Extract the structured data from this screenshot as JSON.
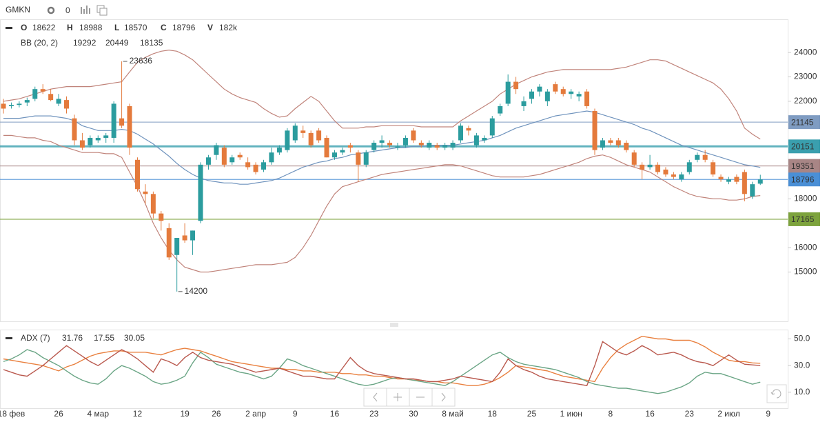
{
  "header": {
    "symbol": "GMKN",
    "count": "0"
  },
  "chart_data": [
    {
      "type": "candlestick",
      "ohlc_labels": [
        "O",
        "H",
        "L",
        "C",
        "V"
      ],
      "volume": 182000,
      "volume_label": "182k",
      "categories": [
        null,
        "18 фев",
        null,
        null,
        null,
        null,
        null,
        "26",
        null,
        null,
        null,
        null,
        "4 мар",
        null,
        null,
        null,
        null,
        "12",
        null,
        null,
        null,
        null,
        null,
        "19",
        null,
        null,
        null,
        "26",
        null,
        null,
        null,
        null,
        "2 апр",
        null,
        null,
        null,
        null,
        "9",
        null,
        null,
        null,
        null,
        "16",
        null,
        null,
        null,
        null,
        "23",
        null,
        null,
        null,
        null,
        "30",
        null,
        null,
        null,
        null,
        "8 май",
        null,
        null,
        null,
        null,
        "18",
        null,
        null,
        null,
        null,
        "25",
        null,
        null,
        null,
        null,
        "1 июн",
        null,
        null,
        null,
        null,
        "8",
        null,
        null,
        null,
        null,
        "16",
        null,
        null,
        null,
        null,
        "23",
        null,
        null,
        null,
        null,
        "2 июл",
        null,
        null,
        null,
        null,
        "9",
        null,
        null
      ],
      "open": [
        21900,
        21800,
        21850,
        21950,
        22100,
        22500,
        22300,
        21900,
        22050,
        21300,
        20400,
        20200,
        20400,
        20500,
        20500,
        21300,
        21800,
        19600,
        18300,
        18200,
        17400,
        16800,
        15700,
        16500,
        16300,
        17100,
        19400,
        19800,
        20100,
        19500,
        19800,
        19500,
        19400,
        19200,
        19500,
        19900,
        20000,
        20400,
        20800,
        20700,
        20800,
        20500,
        19700,
        19900,
        20200,
        19900,
        19400,
        20000,
        20300,
        20300,
        20100,
        20200,
        20800,
        20300,
        20100,
        20200,
        20100,
        20100,
        20400,
        20900,
        20200,
        20400,
        20600,
        21500,
        21900,
        22800,
        21800,
        22100,
        22400,
        22000,
        22700,
        22500,
        22300,
        22200,
        22400,
        21600,
        20100,
        20400,
        20400,
        20300,
        19900,
        19400,
        19300,
        19400,
        19200,
        19000,
        18800,
        19100,
        19600,
        19800,
        19500,
        18900,
        18700,
        18900,
        19100,
        18100,
        18622,
        null,
        null,
        null
      ],
      "high": [
        22100,
        21950,
        22000,
        22150,
        22600,
        22700,
        22500,
        22300,
        22200,
        21450,
        20700,
        20600,
        20600,
        20700,
        22000,
        23636,
        21900,
        19700,
        18600,
        18300,
        17500,
        17000,
        16300,
        17000,
        16700,
        19500,
        19800,
        20300,
        20200,
        19800,
        19900,
        19700,
        19500,
        19600,
        20100,
        20200,
        20900,
        21100,
        21000,
        20800,
        20900,
        20600,
        20000,
        20100,
        20300,
        20000,
        20000,
        20400,
        20600,
        20400,
        20300,
        20600,
        20900,
        20400,
        20400,
        20300,
        20300,
        20400,
        21100,
        21000,
        20700,
        20600,
        21400,
        21900,
        23100,
        23000,
        22200,
        22500,
        22700,
        22500,
        22800,
        22600,
        22500,
        22400,
        22500,
        21700,
        20500,
        20500,
        20500,
        20400,
        20000,
        19500,
        19800,
        19500,
        19300,
        19100,
        19100,
        19600,
        19900,
        20000,
        19600,
        19000,
        18900,
        19000,
        19200,
        18700,
        18988,
        null,
        null,
        null
      ],
      "low": [
        21500,
        21700,
        21750,
        21800,
        22000,
        22300,
        22000,
        21800,
        21500,
        20200,
        20000,
        20100,
        20300,
        20300,
        20300,
        20900,
        19800,
        18300,
        17800,
        17200,
        16700,
        15500,
        14200,
        16200,
        15700,
        17000,
        19200,
        19600,
        19300,
        19400,
        19600,
        19200,
        19000,
        19100,
        19400,
        19800,
        19900,
        20300,
        20500,
        20100,
        20300,
        19700,
        19600,
        19800,
        19900,
        18700,
        19300,
        19900,
        20100,
        20100,
        20000,
        20100,
        20300,
        20100,
        20000,
        20000,
        20000,
        20000,
        20300,
        20600,
        20100,
        20300,
        20500,
        21400,
        21800,
        22300,
        21600,
        21900,
        22200,
        21800,
        22300,
        22200,
        22100,
        22000,
        21700,
        19800,
        20000,
        20200,
        20100,
        19900,
        19300,
        18800,
        19200,
        19000,
        18900,
        18800,
        18700,
        19000,
        19500,
        19500,
        18900,
        18700,
        18600,
        18600,
        17900,
        18000,
        18570,
        null,
        null,
        null
      ],
      "close": [
        21700,
        21850,
        21900,
        22050,
        22500,
        22400,
        22050,
        22100,
        21700,
        20400,
        20100,
        20500,
        20500,
        20600,
        21900,
        21000,
        20100,
        18400,
        18200,
        17400,
        17100,
        15600,
        16400,
        16300,
        16700,
        19400,
        19700,
        20200,
        19400,
        19700,
        19700,
        19300,
        19100,
        19500,
        19900,
        20100,
        20800,
        21000,
        20700,
        20200,
        20400,
        19700,
        19900,
        20000,
        20100,
        19400,
        19900,
        20300,
        20400,
        20200,
        20150,
        20500,
        20400,
        20200,
        20300,
        20100,
        20200,
        20300,
        21000,
        20800,
        20600,
        20500,
        21300,
        21800,
        22800,
        22500,
        22000,
        22400,
        22600,
        22400,
        22400,
        22300,
        22400,
        22300,
        21800,
        20000,
        20400,
        20300,
        20200,
        20000,
        19400,
        19200,
        19400,
        19100,
        19000,
        18900,
        19000,
        19500,
        19800,
        19600,
        19000,
        18800,
        18800,
        18700,
        18200,
        18600,
        18796,
        null,
        null,
        null
      ],
      "up_color": "#2b9c9e",
      "down_color": "#e47a3c",
      "indicator": "BB (20, 2)",
      "overlays": [
        {
          "color": "#6f93bd",
          "values": [
            21300,
            21300,
            21300,
            21350,
            21400,
            21400,
            21400,
            21350,
            21300,
            21200,
            21000,
            20900,
            20800,
            20800,
            20800,
            20850,
            20800,
            20650,
            20450,
            20250,
            20000,
            19750,
            19450,
            19200,
            19000,
            18850,
            18750,
            18700,
            18650,
            18650,
            18600,
            18600,
            18650,
            18700,
            18750,
            18850,
            19000,
            19150,
            19300,
            19400,
            19500,
            19550,
            19650,
            19700,
            19800,
            19850,
            19900,
            19950,
            20000,
            20050,
            20100,
            20100,
            20150,
            20150,
            20200,
            20200,
            20200,
            20200,
            20250,
            20300,
            20350,
            20400,
            20500,
            20600,
            20750,
            20900,
            21000,
            21100,
            21200,
            21300,
            21400,
            21450,
            21500,
            21550,
            21600,
            21550,
            21450,
            21350,
            21250,
            21150,
            21050,
            20900,
            20800,
            20650,
            20500,
            20350,
            20200,
            20100,
            20000,
            19900,
            19800,
            19700,
            19600,
            19500,
            19400,
            19350,
            19292,
            null,
            null,
            null
          ]
        },
        {
          "color": "#c0837a",
          "values": [
            22000,
            22050,
            22100,
            22200,
            22300,
            22400,
            22500,
            22550,
            22600,
            22600,
            22600,
            22600,
            22650,
            22700,
            22750,
            22800,
            23200,
            23600,
            23800,
            23950,
            24050,
            24100,
            24050,
            23900,
            23700,
            23400,
            23100,
            22800,
            22500,
            22300,
            22150,
            22050,
            21950,
            21700,
            21500,
            21350,
            21400,
            21700,
            21950,
            22200,
            22000,
            21600,
            21200,
            20900,
            20900,
            20900,
            20950,
            20950,
            21000,
            21000,
            21000,
            21000,
            21000,
            20950,
            20950,
            20950,
            20950,
            20950,
            21200,
            21400,
            21600,
            21800,
            22000,
            22300,
            22500,
            22700,
            22850,
            23000,
            23100,
            23200,
            23250,
            23300,
            23300,
            23300,
            23300,
            23300,
            23300,
            23300,
            23350,
            23400,
            23500,
            23600,
            23700,
            23700,
            23650,
            23500,
            23350,
            23200,
            23050,
            22900,
            22750,
            22500,
            22100,
            21600,
            20900,
            20650,
            20449,
            null,
            null,
            null
          ]
        },
        {
          "color": "#c0837a",
          "values": [
            20600,
            20600,
            20550,
            20500,
            20500,
            20400,
            20350,
            20200,
            20100,
            20000,
            19900,
            19900,
            19900,
            19850,
            19850,
            19700,
            19100,
            18500,
            17800,
            17000,
            16400,
            15900,
            15500,
            15200,
            15100,
            15000,
            15000,
            15050,
            15100,
            15150,
            15200,
            15250,
            15300,
            15300,
            15300,
            15350,
            15400,
            15600,
            16000,
            16500,
            17100,
            17700,
            18200,
            18500,
            18600,
            18700,
            18800,
            18900,
            19000,
            19050,
            19100,
            19150,
            19200,
            19250,
            19300,
            19350,
            19400,
            19400,
            19350,
            19250,
            19150,
            19050,
            18950,
            18900,
            18900,
            18900,
            18900,
            18950,
            19000,
            19100,
            19200,
            19300,
            19400,
            19500,
            19650,
            19750,
            19800,
            19700,
            19550,
            19400,
            19300,
            19200,
            19100,
            18900,
            18700,
            18500,
            18350,
            18200,
            18100,
            18050,
            18000,
            18000,
            17950,
            17950,
            18000,
            18100,
            18135,
            null,
            null,
            null
          ]
        }
      ],
      "hlines": [
        {
          "value": 21145,
          "color": "#7f9cc2"
        },
        {
          "value": 20151,
          "color": "#3a9fae"
        },
        {
          "value": 19351,
          "color": "#a88585"
        },
        {
          "value": 18796,
          "color": "#4a8fd6"
        },
        {
          "value": 17165,
          "color": "#7da33d"
        }
      ],
      "ylim": [
        12980,
        25360
      ],
      "yticks": [
        15000,
        16000,
        18000,
        22000,
        23000,
        24000
      ]
    },
    {
      "type": "line",
      "name": "ADX (7)",
      "series": [
        {
          "color": "#e9803f",
          "values": [
            35,
            34,
            33,
            32,
            31,
            30,
            28,
            26,
            29,
            31,
            34,
            37,
            39,
            40,
            41,
            41,
            40,
            40,
            40,
            39,
            38,
            40,
            42,
            43,
            42,
            41,
            39,
            37,
            35,
            33,
            32,
            31,
            30,
            29,
            28,
            28,
            27,
            27,
            26,
            26,
            25,
            25,
            25,
            24,
            24,
            23,
            23,
            22,
            22,
            21,
            20,
            20,
            19,
            19,
            18,
            18,
            17,
            17,
            16,
            15,
            15,
            16,
            18,
            21,
            25,
            30,
            29,
            28,
            27,
            26,
            24,
            22,
            21,
            20,
            19,
            18,
            28,
            36,
            42,
            46,
            49,
            52,
            51,
            50,
            50,
            49,
            49,
            49,
            47,
            44,
            40,
            37,
            34,
            33,
            33,
            32,
            31.76,
            null,
            null,
            null
          ]
        },
        {
          "color": "#6aa585",
          "values": [
            33,
            35,
            38,
            42,
            40,
            36,
            33,
            30,
            26,
            22,
            19,
            17,
            16,
            20,
            26,
            30,
            28,
            25,
            22,
            18,
            16,
            17,
            19,
            22,
            32,
            40,
            36,
            31,
            29,
            27,
            25,
            24,
            22,
            20,
            22,
            28,
            35,
            33,
            30,
            28,
            26,
            24,
            22,
            20,
            18,
            16,
            15,
            16,
            18,
            20,
            21,
            20,
            19,
            18,
            17,
            16,
            15,
            18,
            22,
            26,
            30,
            34,
            38,
            40,
            36,
            33,
            31,
            30,
            29,
            28,
            27,
            25,
            23,
            21,
            18,
            16,
            15,
            14,
            13,
            13,
            12,
            11,
            10,
            9,
            10,
            12,
            14,
            17,
            22,
            25,
            24,
            24,
            22,
            20,
            18,
            16,
            17.55,
            null,
            null,
            null
          ]
        },
        {
          "color": "#b9584d",
          "values": [
            27,
            25,
            23,
            22,
            26,
            30,
            35,
            40,
            45,
            41,
            37,
            33,
            30,
            34,
            38,
            42,
            39,
            35,
            30,
            25,
            35,
            33,
            30,
            36,
            40,
            36,
            34,
            33,
            32,
            31,
            29,
            27,
            25,
            26,
            27,
            28,
            26,
            24,
            22,
            22,
            21,
            20,
            20,
            28,
            36,
            30,
            26,
            24,
            23,
            22,
            21,
            20,
            20,
            19,
            18,
            18,
            19,
            20,
            22,
            21,
            20,
            19,
            18,
            25,
            35,
            30,
            27,
            25,
            22,
            20,
            19,
            18,
            17,
            16,
            15,
            30,
            48,
            44,
            40,
            38,
            41,
            45,
            42,
            38,
            39,
            40,
            38,
            35,
            33,
            32,
            30,
            34,
            38,
            34,
            31,
            30.5,
            30.05,
            null,
            null,
            null
          ]
        }
      ],
      "ylim": [
        -2,
        57
      ],
      "yticks": [
        {
          "value": 10,
          "label": "10.0"
        },
        {
          "value": 30,
          "label": "30.0"
        },
        {
          "value": 50,
          "label": "50.0"
        }
      ]
    }
  ]
}
